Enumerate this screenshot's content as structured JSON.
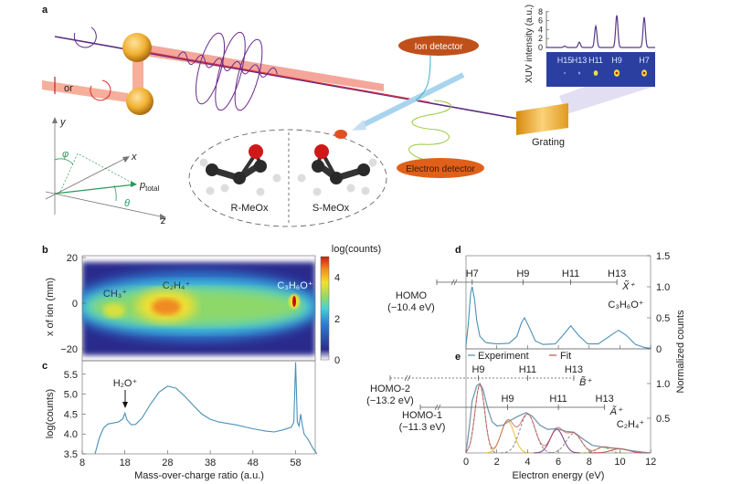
{
  "panel_labels": {
    "a": "a",
    "b": "b",
    "c": "c",
    "d": "d",
    "e": "e"
  },
  "diagram": {
    "polarization_label": "or",
    "axes": {
      "y": "y",
      "x": "x",
      "z": "z",
      "phi": "φ",
      "theta": "θ",
      "p": "p",
      "p_sub": "total"
    },
    "molecules": {
      "left": "R-MeOx",
      "right": "S-MeOx"
    },
    "ion_detector": "Ion detector",
    "electron_detector": "Electron detector",
    "grating": "Grating",
    "colors": {
      "xuv_beam": "#5b2c83",
      "ir_beam": "#f08070",
      "mirror": "#f0b030",
      "detector": "#d9541e",
      "ion_beam": "#a8d4ee"
    }
  },
  "chart_data": [
    {
      "panel": "a-inset",
      "type": "line",
      "ylabel": "XUV intensity (a.u.)",
      "yticks": [
        "0",
        "2",
        "4",
        "6",
        "8"
      ],
      "ylim": [
        0,
        8
      ],
      "peaks": [
        {
          "label": "H15",
          "value": 0.3
        },
        {
          "label": "H13",
          "value": 1.2
        },
        {
          "label": "H11",
          "value": 4.8
        },
        {
          "label": "H9",
          "value": 7.2
        },
        {
          "label": "H7",
          "value": 6.8
        }
      ],
      "color": "#5b3a8a"
    },
    {
      "panel": "b",
      "type": "heatmap",
      "xlim": [
        8,
        63
      ],
      "ylim": [
        -25,
        22
      ],
      "ylabel": "x of ion (mm)",
      "yticks": [
        "20",
        "0",
        "−20"
      ],
      "colorbar_label": "log(counts)",
      "colorbar_ticks": [
        "4",
        "2",
        "0"
      ],
      "colorbar_range": [
        0,
        5
      ],
      "annotations": [
        {
          "text": "CH₃⁺",
          "x": 15
        },
        {
          "text": "C₂H₄⁺",
          "x": 28
        },
        {
          "text": "C₃H₆O⁺",
          "x": 58
        }
      ]
    },
    {
      "panel": "c",
      "type": "line",
      "xlabel": "Mass-over-charge ratio (a.u.)",
      "ylabel": "log(counts)",
      "xlim": [
        8,
        63
      ],
      "ylim": [
        3.5,
        5.8
      ],
      "xticks": [
        "8",
        "18",
        "28",
        "38",
        "48",
        "58"
      ],
      "yticks": [
        "3.5",
        "4.0",
        "4.5",
        "5.0",
        "5.5"
      ],
      "annotation": {
        "text": "H₂O⁺",
        "x": 18
      },
      "color": "#4a90b8",
      "points": [
        [
          11,
          3.5
        ],
        [
          12,
          3.9
        ],
        [
          13,
          4.15
        ],
        [
          14,
          4.25
        ],
        [
          15,
          4.27
        ],
        [
          16.5,
          4.3
        ],
        [
          17.5,
          4.38
        ],
        [
          18,
          4.52
        ],
        [
          18.5,
          4.35
        ],
        [
          19.5,
          4.23
        ],
        [
          20.5,
          4.24
        ],
        [
          22,
          4.4
        ],
        [
          24,
          4.75
        ],
        [
          26,
          5.05
        ],
        [
          28,
          5.2
        ],
        [
          30,
          5.15
        ],
        [
          32,
          4.95
        ],
        [
          34,
          4.72
        ],
        [
          36,
          4.5
        ],
        [
          38,
          4.37
        ],
        [
          40,
          4.3
        ],
        [
          44,
          4.23
        ],
        [
          48,
          4.13
        ],
        [
          51,
          4.07
        ],
        [
          53,
          4.05
        ],
        [
          55,
          4.1
        ],
        [
          57,
          4.17
        ],
        [
          57.6,
          4.3
        ],
        [
          58,
          5.8
        ],
        [
          58.4,
          4.3
        ],
        [
          58.8,
          4.2
        ],
        [
          59.2,
          4.5
        ],
        [
          59.6,
          4.2
        ],
        [
          60,
          4.0
        ],
        [
          61,
          3.85
        ],
        [
          62,
          3.65
        ],
        [
          63,
          3.5
        ]
      ]
    },
    {
      "panel": "d",
      "type": "line",
      "xlim": [
        0,
        12
      ],
      "ylim": [
        0,
        1.5
      ],
      "yticks": [
        "0",
        "0.5",
        "1.0",
        "1.5"
      ],
      "ylabel": "Normalized counts",
      "species": "C₃H₆O⁺",
      "orbital": {
        "name": "HOMO",
        "energy": "(−10.4 eV)",
        "state": "X̃⁺",
        "harmonics": [
          {
            "label": "H7",
            "x": 0.4
          },
          {
            "label": "H9",
            "x": 3.7
          },
          {
            "label": "H11",
            "x": 6.8
          },
          {
            "label": "H13",
            "x": 9.8
          }
        ]
      },
      "color": "#4a90b8",
      "points": [
        [
          0,
          0.05
        ],
        [
          0.15,
          0.4
        ],
        [
          0.3,
          0.9
        ],
        [
          0.4,
          1.0
        ],
        [
          0.55,
          0.8
        ],
        [
          0.7,
          0.45
        ],
        [
          0.9,
          0.2
        ],
        [
          1.3,
          0.1
        ],
        [
          2,
          0.08
        ],
        [
          2.8,
          0.09
        ],
        [
          3.3,
          0.2
        ],
        [
          3.6,
          0.42
        ],
        [
          3.8,
          0.5
        ],
        [
          4.1,
          0.35
        ],
        [
          4.5,
          0.13
        ],
        [
          5,
          0.07
        ],
        [
          5.8,
          0.08
        ],
        [
          6.3,
          0.22
        ],
        [
          6.8,
          0.37
        ],
        [
          7.3,
          0.22
        ],
        [
          7.9,
          0.08
        ],
        [
          8.6,
          0.08
        ],
        [
          9.3,
          0.2
        ],
        [
          9.9,
          0.3
        ],
        [
          10.4,
          0.22
        ],
        [
          11,
          0.07
        ],
        [
          11.6,
          0.02
        ],
        [
          12,
          0.01
        ]
      ]
    },
    {
      "panel": "e",
      "type": "line",
      "xlabel": "Electron energy (eV)",
      "xlim": [
        0,
        12
      ],
      "ylim": [
        0,
        1.2
      ],
      "xticks": [
        "0",
        "2",
        "4",
        "6",
        "8",
        "10",
        "12"
      ],
      "yticks": [
        "0",
        "0.5",
        "1.0"
      ],
      "species": "C₂H₄⁺",
      "legend": [
        {
          "name": "Experiment",
          "color": "#4a90b8"
        },
        {
          "name": "Fit",
          "color": "#c0504d"
        }
      ],
      "orbitals": [
        {
          "name": "HOMO-2",
          "energy": "(−13.2 eV)",
          "state": "B̃⁺",
          "style": "dashed",
          "harmonics": [
            {
              "label": "H9",
              "x": 0.8
            },
            {
              "label": "H11",
              "x": 4.0
            },
            {
              "label": "H13",
              "x": 7.0
            }
          ]
        },
        {
          "name": "HOMO-1",
          "energy": "(−11.3 eV)",
          "state": "Ã⁺",
          "style": "solid",
          "harmonics": [
            {
              "label": "H9",
              "x": 2.7
            },
            {
              "label": "H11",
              "x": 6.0
            },
            {
              "label": "H13",
              "x": 9.0
            }
          ]
        }
      ],
      "points": [
        [
          0,
          0.0
        ],
        [
          0.2,
          0.35
        ],
        [
          0.4,
          0.75
        ],
        [
          0.7,
          0.97
        ],
        [
          0.9,
          1.0
        ],
        [
          1.1,
          0.92
        ],
        [
          1.4,
          0.65
        ],
        [
          1.7,
          0.45
        ],
        [
          2,
          0.39
        ],
        [
          2.4,
          0.4
        ],
        [
          2.8,
          0.46
        ],
        [
          3.3,
          0.52
        ],
        [
          3.9,
          0.58
        ],
        [
          4.3,
          0.53
        ],
        [
          4.8,
          0.4
        ],
        [
          5.3,
          0.34
        ],
        [
          5.9,
          0.35
        ],
        [
          6.5,
          0.31
        ],
        [
          7,
          0.3
        ],
        [
          7.6,
          0.2
        ],
        [
          8.2,
          0.11
        ],
        [
          9,
          0.08
        ],
        [
          10,
          0.06
        ],
        [
          10.8,
          0.03
        ],
        [
          11.5,
          0.01
        ],
        [
          12,
          0.0
        ]
      ],
      "fit_components": [
        {
          "center": 0.9,
          "amplitude": 0.98,
          "width": 0.45,
          "color": "#888888",
          "style": "dashed"
        },
        {
          "center": 2.7,
          "amplitude": 0.46,
          "width": 0.6,
          "color": "#e8c040",
          "style": "solid"
        },
        {
          "center": 4.0,
          "amplitude": 0.56,
          "width": 0.7,
          "color": "#888888",
          "style": "dashed"
        },
        {
          "center": 5.9,
          "amplitude": 0.34,
          "width": 0.6,
          "color": "#7a3a7a",
          "style": "solid"
        },
        {
          "center": 7.0,
          "amplitude": 0.28,
          "width": 0.7,
          "color": "#888888",
          "style": "dashed"
        },
        {
          "center": 8.9,
          "amplitude": 0.08,
          "width": 0.6,
          "color": "#8ab840",
          "style": "dashed"
        },
        {
          "center": 10.0,
          "amplitude": 0.06,
          "width": 0.8,
          "color": "#c0504d",
          "style": "solid"
        }
      ]
    }
  ]
}
